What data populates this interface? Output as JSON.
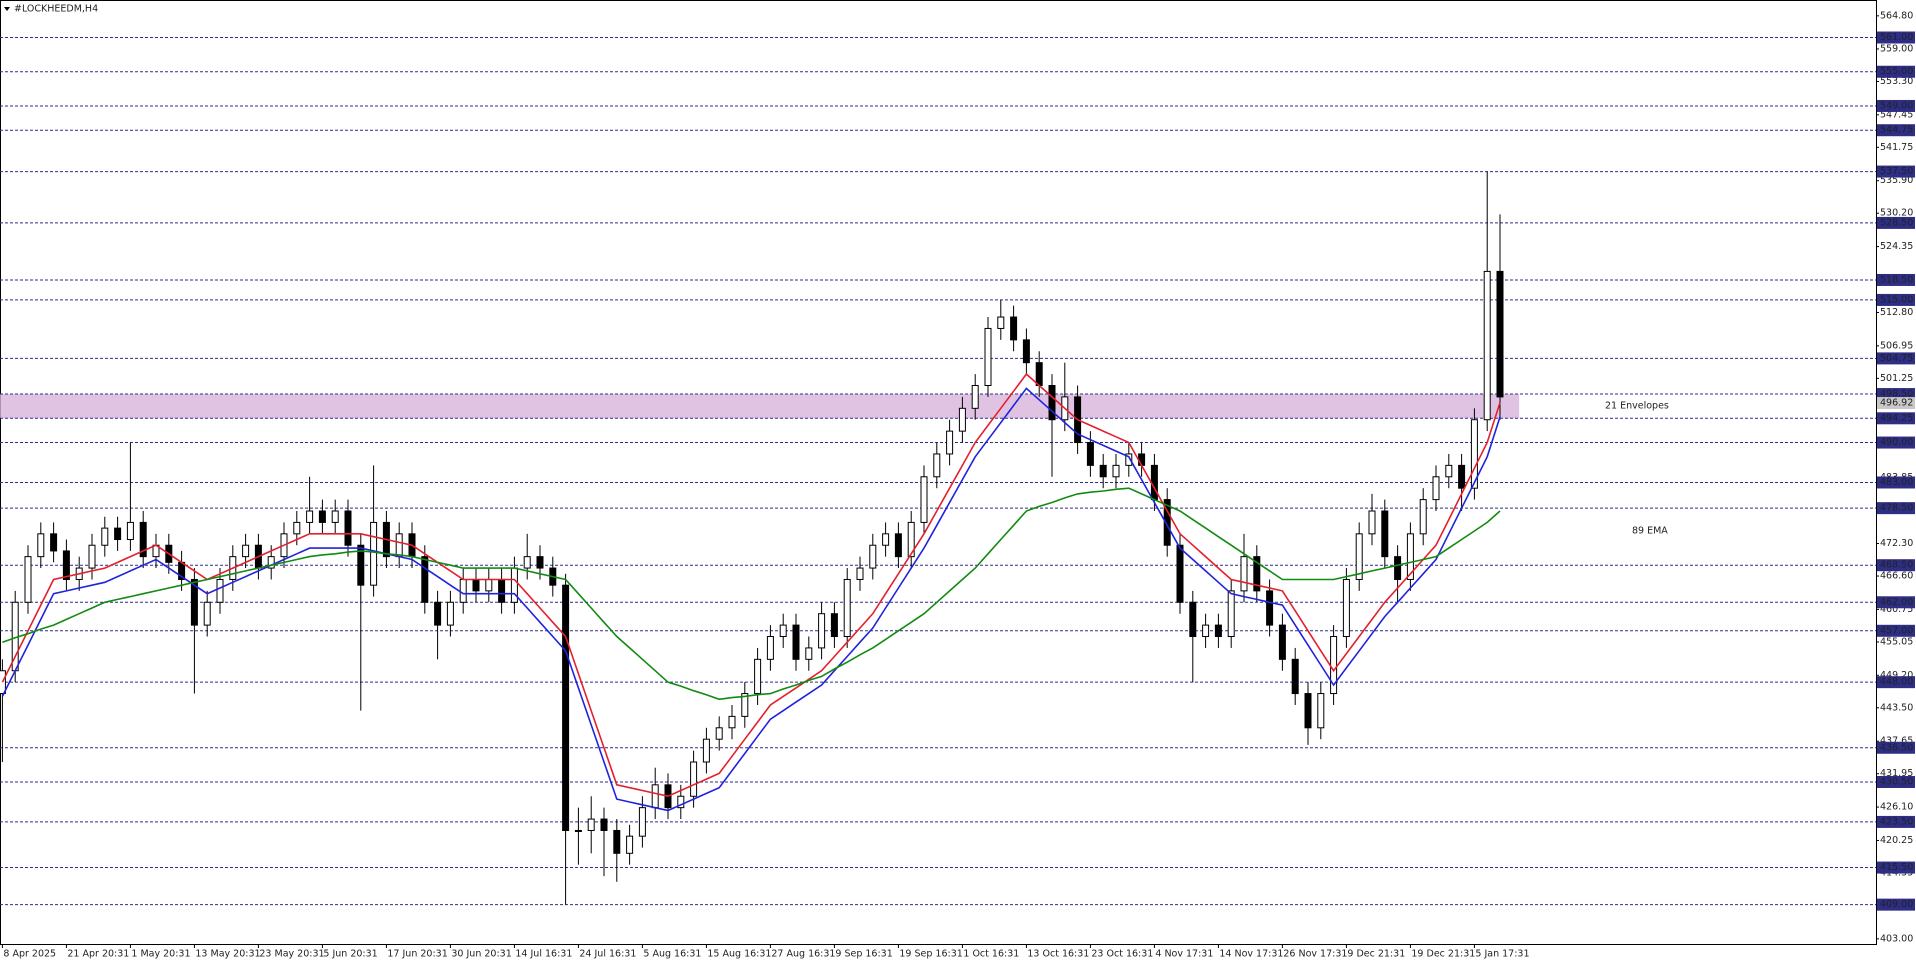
{
  "chart_data": {
    "type": "candlestick",
    "title": "#LOCKHEEDM,H4",
    "categories": [
      "8 Apr 2025",
      null,
      null,
      null,
      null,
      "21 Apr 20:31",
      null,
      null,
      null,
      null,
      "1 May 20:31",
      null,
      null,
      null,
      null,
      "13 May 20:31",
      null,
      null,
      null,
      null,
      "23 May 20:31",
      null,
      null,
      null,
      null,
      "5 Jun 20:31",
      null,
      null,
      null,
      null,
      "17 Jun 20:31",
      null,
      null,
      null,
      null,
      "30 Jun 20:31",
      null,
      null,
      null,
      null,
      "14 Jul 16:31",
      null,
      null,
      null,
      null,
      "24 Jul 16:31",
      null,
      null,
      null,
      null,
      "5 Aug 16:31",
      null,
      null,
      null,
      null,
      "15 Aug 16:31",
      null,
      null,
      null,
      null,
      "27 Aug 16:31",
      null,
      null,
      null,
      null,
      "9 Sep 16:31",
      null,
      null,
      null,
      null,
      "19 Sep 16:31",
      null,
      null,
      null,
      null,
      "1 Oct 16:31",
      null,
      null,
      null,
      null,
      "13 Oct 16:31",
      null,
      null,
      null,
      null,
      "23 Oct 16:31",
      null,
      null,
      null,
      null,
      "4 Nov 17:31",
      null,
      null,
      null,
      null,
      "14 Nov 17:31",
      null,
      null,
      null,
      null,
      "26 Nov 17:31",
      null,
      null,
      null,
      null,
      "9 Dec 21:31",
      null,
      null,
      null,
      null,
      "19 Dec 21:31",
      null,
      null,
      null,
      null,
      "5 Jan 17:31",
      null,
      null
    ],
    "open": [
      446,
      450,
      462,
      470,
      474,
      471,
      466,
      468,
      472,
      475,
      473,
      476,
      470,
      472,
      469,
      466,
      458,
      462,
      466,
      470,
      472,
      468,
      470,
      474,
      476,
      478,
      476,
      478,
      472,
      465,
      476,
      470,
      474,
      470,
      462,
      458,
      462,
      466,
      464,
      466,
      462,
      468,
      470,
      468,
      465,
      422,
      422,
      424,
      422,
      418,
      421,
      426,
      430,
      426,
      428,
      434,
      438,
      440,
      442,
      446,
      452,
      456,
      458,
      452,
      454,
      460,
      456,
      466,
      468,
      472,
      474,
      470,
      476,
      484,
      488,
      492,
      496,
      500,
      510,
      512,
      508,
      504,
      500,
      494,
      498,
      490,
      486,
      484,
      486,
      488,
      486,
      480,
      472,
      462,
      456,
      458,
      456,
      464,
      470,
      464,
      458,
      452,
      446,
      440,
      446,
      456,
      466,
      474,
      478,
      470,
      466,
      474,
      480,
      484,
      486,
      482,
      494,
      520
    ],
    "high": [
      452,
      464,
      472,
      476,
      476,
      473,
      470,
      474,
      477,
      477,
      490,
      478,
      474,
      474,
      471,
      468,
      464,
      468,
      472,
      474,
      474,
      472,
      476,
      478,
      484,
      480,
      480,
      480,
      474,
      486,
      478,
      476,
      476,
      472,
      464,
      464,
      468,
      468,
      468,
      468,
      470,
      474,
      472,
      470,
      467,
      426,
      428,
      426,
      424,
      423,
      428,
      433,
      432,
      430,
      436,
      440,
      442,
      444,
      448,
      454,
      458,
      460,
      460,
      456,
      462,
      462,
      468,
      470,
      474,
      476,
      476,
      478,
      486,
      490,
      494,
      498,
      502,
      512,
      515,
      514,
      510,
      506,
      502,
      504,
      500,
      492,
      488,
      488,
      490,
      490,
      488,
      482,
      474,
      464,
      460,
      460,
      466,
      474,
      472,
      466,
      460,
      454,
      448,
      448,
      458,
      468,
      476,
      481,
      480,
      472,
      476,
      482,
      486,
      488,
      488,
      496,
      537.5,
      530
    ],
    "low": [
      434,
      448,
      460,
      468,
      469,
      464,
      464,
      466,
      470,
      471,
      471,
      468,
      468,
      467,
      464,
      446,
      456,
      460,
      464,
      468,
      466,
      466,
      468,
      472,
      474,
      474,
      474,
      470,
      443,
      463,
      468,
      468,
      468,
      460,
      452,
      456,
      460,
      462,
      462,
      460,
      460,
      466,
      466,
      463,
      409,
      416,
      418,
      414,
      413,
      416,
      419,
      424,
      424,
      424,
      426,
      432,
      436,
      438,
      440,
      444,
      450,
      454,
      450,
      450,
      452,
      454,
      454,
      464,
      466,
      470,
      468,
      468,
      474,
      482,
      486,
      490,
      494,
      498,
      508,
      506,
      502,
      498,
      484,
      492,
      488,
      484,
      482,
      482,
      484,
      484,
      478,
      470,
      460,
      448,
      454,
      454,
      454,
      462,
      462,
      456,
      450,
      444,
      437,
      438,
      444,
      454,
      464,
      472,
      468,
      462,
      464,
      472,
      478,
      482,
      478,
      480,
      492,
      494
    ],
    "close": [
      450,
      462,
      470,
      474,
      471,
      466,
      468,
      472,
      475,
      473,
      476,
      470,
      472,
      469,
      466,
      458,
      462,
      466,
      470,
      472,
      468,
      470,
      474,
      476,
      478,
      476,
      478,
      472,
      465,
      476,
      470,
      474,
      470,
      462,
      458,
      462,
      466,
      464,
      466,
      462,
      468,
      470,
      468,
      465,
      422,
      422,
      424,
      422,
      418,
      421,
      426,
      430,
      426,
      428,
      434,
      438,
      440,
      442,
      446,
      452,
      456,
      458,
      452,
      454,
      460,
      456,
      466,
      468,
      472,
      474,
      470,
      476,
      484,
      488,
      492,
      496,
      500,
      510,
      512,
      508,
      504,
      500,
      494,
      498,
      490,
      486,
      484,
      486,
      488,
      486,
      480,
      472,
      462,
      456,
      458,
      456,
      464,
      470,
      464,
      458,
      452,
      446,
      440,
      446,
      456,
      466,
      474,
      478,
      470,
      466,
      474,
      480,
      484,
      486,
      482,
      494,
      520,
      498
    ],
    "series": [
      {
        "color": "#e3202c",
        "values": [
          448,
          452.5,
          457,
          461.5,
          466,
          466.5,
          467,
          467.5,
          468,
          469,
          470,
          471,
          472,
          470.5,
          469,
          467.5,
          466,
          467,
          468,
          469,
          470,
          471,
          472,
          473,
          474,
          474,
          474,
          474,
          474,
          473.5,
          473,
          472.5,
          472,
          470.5,
          469,
          467.5,
          466,
          466,
          466,
          466,
          466,
          463.5,
          461,
          458.5,
          456,
          449.5,
          443,
          436.5,
          430,
          429.5,
          429,
          428.5,
          428,
          429,
          430,
          431,
          432,
          435,
          438,
          441,
          444,
          445.5,
          447,
          448.5,
          450,
          452.5,
          455,
          457.5,
          460,
          463.5,
          467,
          470.5,
          474,
          478,
          482,
          486,
          490,
          493,
          496,
          499,
          502,
          500,
          498,
          496,
          494,
          493,
          492,
          491,
          490,
          486,
          482,
          478,
          474,
          472,
          470,
          468,
          466,
          465.5,
          465,
          464.5,
          464,
          460.5,
          457,
          453.5,
          450,
          453,
          456,
          459,
          462,
          464.5,
          467,
          469.5,
          472,
          476.5,
          481,
          485.5,
          490,
          497
        ]
      },
      {
        "color": "#2222dd",
        "values": [
          445.5,
          450,
          454.5,
          459,
          463.5,
          464,
          464.5,
          465,
          465.5,
          466.5,
          467.5,
          468.5,
          469.5,
          468,
          466.5,
          465,
          463.5,
          464.5,
          465.5,
          466.5,
          467.5,
          468.5,
          469.5,
          470.5,
          471.5,
          471.5,
          471.5,
          471.5,
          471.5,
          471,
          470.5,
          470,
          469.5,
          468,
          466.5,
          465,
          463.5,
          463.5,
          463.5,
          463.5,
          463.5,
          461,
          458.5,
          456,
          453.5,
          447,
          440.5,
          434,
          427.5,
          427,
          426.5,
          426,
          425.5,
          426.5,
          427.5,
          428.5,
          429.5,
          432.5,
          435.5,
          438.5,
          441.5,
          443,
          444.5,
          446,
          447.5,
          450,
          452.5,
          455,
          457.5,
          461,
          464.5,
          468,
          471.5,
          475.5,
          479.5,
          483.5,
          487.5,
          490.5,
          493.5,
          496.5,
          499.5,
          497.5,
          495.5,
          493.5,
          491.5,
          490.5,
          489.5,
          488.5,
          487.5,
          483.5,
          479.5,
          475.5,
          471.5,
          469.5,
          467.5,
          465.5,
          463.5,
          463,
          462.5,
          462,
          461.5,
          458,
          454.5,
          451,
          447.5,
          450.5,
          453.5,
          456.5,
          459.5,
          462,
          464.5,
          467,
          469.5,
          474,
          478.5,
          483,
          487.5,
          494.5
        ]
      },
      {
        "name": "89 EMA",
        "color": "#138a13",
        "values": [
          455,
          455.8,
          456.5,
          457.3,
          458,
          459,
          460,
          461,
          462,
          462.5,
          463,
          463.5,
          464,
          464.5,
          465,
          465.5,
          466,
          466.5,
          467,
          467.5,
          468,
          468.5,
          469,
          469.5,
          470,
          470.3,
          470.5,
          470.8,
          471,
          470.8,
          470.5,
          470.3,
          470,
          469.5,
          469,
          468.5,
          468,
          468,
          468,
          468,
          468,
          467.5,
          467,
          466.5,
          466,
          463.5,
          461,
          458.5,
          456,
          454,
          452,
          450,
          448,
          447.3,
          446.5,
          445.8,
          445,
          445.3,
          445.5,
          445.8,
          446,
          446.8,
          447.5,
          448.3,
          449,
          450.3,
          451.5,
          452.8,
          454,
          455.5,
          457,
          458.5,
          460,
          462,
          464,
          466,
          468,
          470.5,
          473,
          475.5,
          478,
          478.8,
          479.5,
          480.3,
          481,
          481.3,
          481.5,
          481.8,
          482,
          481,
          480,
          479,
          478,
          476.5,
          475,
          473.5,
          472,
          470.5,
          469,
          467.5,
          466,
          466,
          466,
          466,
          466,
          466.5,
          467,
          467.5,
          468,
          468.5,
          469,
          469.5,
          470,
          471.5,
          473,
          474.5,
          476,
          478
        ]
      }
    ],
    "zone": {
      "label": "21 Envelopes",
      "low": 494.25,
      "high": 498.5,
      "color": "#d8b4dc"
    },
    "ylim": [
      402.1,
      567.4
    ],
    "yticks": [
      {
        "value": 564.8,
        "label": "564.80"
      },
      {
        "value": 559,
        "label": "559.00"
      },
      {
        "value": 553.3,
        "label": "553.30"
      },
      {
        "value": 547.45,
        "label": "547.45"
      },
      {
        "value": 541.75,
        "label": "541.75"
      },
      {
        "value": 535.9,
        "label": "535.90"
      },
      {
        "value": 530.2,
        "label": "530.20"
      },
      {
        "value": 524.35,
        "label": "524.35"
      },
      {
        "value": 512.8,
        "label": "512.80"
      },
      {
        "value": 506.95,
        "label": "506.95"
      },
      {
        "value": 501.25,
        "label": "501.25"
      },
      {
        "value": 483.85,
        "label": "483.85"
      },
      {
        "value": 472.3,
        "label": "472.30"
      },
      {
        "value": 466.6,
        "label": "466.60"
      },
      {
        "value": 460.75,
        "label": "460.75"
      },
      {
        "value": 455.05,
        "label": "455.05"
      },
      {
        "value": 449.2,
        "label": "449.20"
      },
      {
        "value": 443.5,
        "label": "443.50"
      },
      {
        "value": 437.65,
        "label": "437.65"
      },
      {
        "value": 431.95,
        "label": "431.95"
      },
      {
        "value": 426.1,
        "label": "426.10"
      },
      {
        "value": 420.25,
        "label": "420.25"
      },
      {
        "value": 414.55,
        "label": "414.55"
      },
      {
        "value": 403,
        "label": "403.00"
      }
    ],
    "levels": [
      {
        "value": 561,
        "label": "561.00"
      },
      {
        "value": 555,
        "label": "555.00"
      },
      {
        "value": 549,
        "label": "549.00"
      },
      {
        "value": 544.75,
        "label": "544.75"
      },
      {
        "value": 537.5,
        "label": "537.50"
      },
      {
        "value": 528.5,
        "label": "528.50"
      },
      {
        "value": 518.5,
        "label": "518.50"
      },
      {
        "value": 515,
        "label": "515.00"
      },
      {
        "value": 504.75,
        "label": "504.75"
      },
      {
        "value": 498.5,
        "label": "498.50"
      },
      {
        "value": 494.25,
        "label": "494.25"
      },
      {
        "value": 490,
        "label": "490.00"
      },
      {
        "value": 483,
        "label": "483.00"
      },
      {
        "value": 478.5,
        "label": "478.50"
      },
      {
        "value": 468.5,
        "label": "468.50"
      },
      {
        "value": 462,
        "label": "462.00"
      },
      {
        "value": 457,
        "label": "457.00"
      },
      {
        "value": 448,
        "label": "448.00"
      },
      {
        "value": 436.5,
        "label": "436.50"
      },
      {
        "value": 430.5,
        "label": "430.50"
      },
      {
        "value": 423.5,
        "label": "423.50"
      },
      {
        "value": 415.5,
        "label": "415.50"
      },
      {
        "value": 409,
        "label": "409.00"
      }
    ],
    "last_price": {
      "value": 496.92,
      "label": "496.92"
    },
    "level_color": "#2e2e86",
    "grid": false
  }
}
